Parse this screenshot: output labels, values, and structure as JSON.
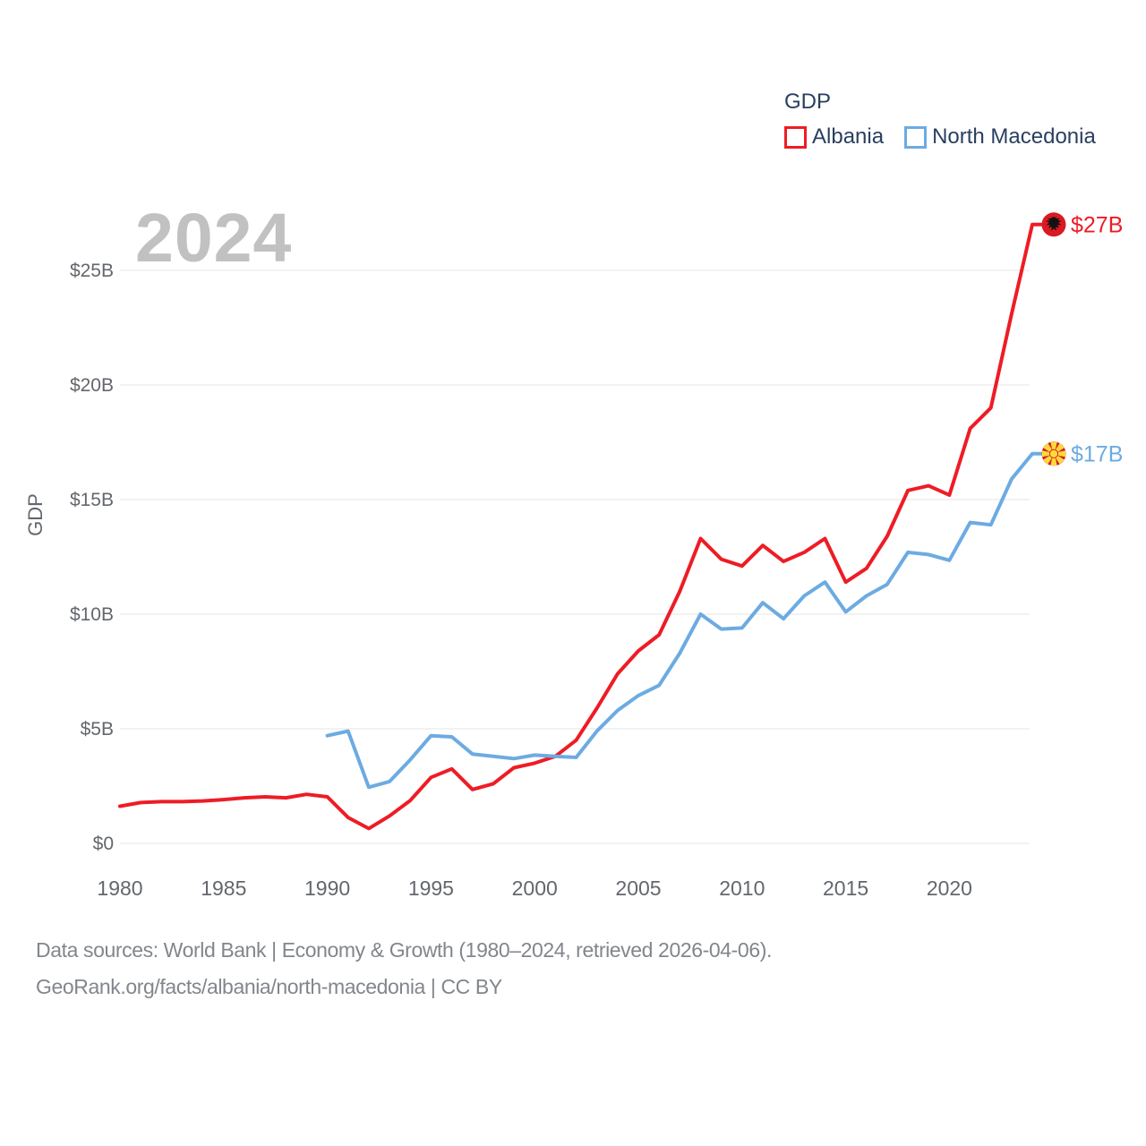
{
  "watermark": "2024",
  "legend": {
    "title": "GDP",
    "items": [
      {
        "label": "Albania",
        "color": "#ee1c25"
      },
      {
        "label": "North Macedonia",
        "color": "#6cabe2"
      }
    ]
  },
  "end_labels": {
    "albania": "$27B",
    "north_macedonia": "$17B"
  },
  "footer": {
    "line1": "Data sources: World Bank | Economy & Growth (1980–2024, retrieved 2026-04-06).",
    "line2": "GeoRank.org/facts/albania/north-macedonia | CC BY"
  },
  "chart_data": {
    "type": "line",
    "title": "GDP",
    "ylabel": "GDP",
    "xlabel": "",
    "x_start": 1980,
    "x_end": 2024,
    "ylim": [
      0,
      27.5
    ],
    "grid": "horizontal-only",
    "legend_position": "top-right",
    "grid_color": "#e9e9ec",
    "tick_color": "#63676c",
    "yticks": [
      {
        "v": 0,
        "label": "$0"
      },
      {
        "v": 5,
        "label": "$5B"
      },
      {
        "v": 10,
        "label": "$10B"
      },
      {
        "v": 15,
        "label": "$15B"
      },
      {
        "v": 20,
        "label": "$20B"
      },
      {
        "v": 25,
        "label": "$25B"
      }
    ],
    "xticks": [
      {
        "v": 1980,
        "label": "1980"
      },
      {
        "v": 1985,
        "label": "1985"
      },
      {
        "v": 1990,
        "label": "1990"
      },
      {
        "v": 1995,
        "label": "1995"
      },
      {
        "v": 2000,
        "label": "2000"
      },
      {
        "v": 2005,
        "label": "2005"
      },
      {
        "v": 2010,
        "label": "2010"
      },
      {
        "v": 2015,
        "label": "2015"
      },
      {
        "v": 2020,
        "label": "2020"
      }
    ],
    "series": [
      {
        "name": "Albania",
        "slug": "albania",
        "color": "#ee1c25",
        "unit": "billion USD",
        "start_year": 1980,
        "end_value_label": "$27B",
        "values": [
          1.62,
          1.78,
          1.82,
          1.82,
          1.85,
          1.91,
          1.99,
          2.03,
          1.99,
          2.14,
          2.03,
          1.13,
          0.65,
          1.2,
          1.87,
          2.88,
          3.25,
          2.35,
          2.6,
          3.3,
          3.5,
          3.8,
          4.5,
          5.9,
          7.4,
          8.4,
          9.1,
          11.0,
          13.3,
          12.4,
          12.1,
          13.0,
          12.3,
          12.7,
          13.3,
          11.4,
          12.0,
          13.4,
          15.4,
          15.6,
          15.2,
          18.1,
          19.0,
          23.1,
          27.0
        ]
      },
      {
        "name": "North Macedonia",
        "slug": "north_macedonia",
        "color": "#6cabe2",
        "unit": "billion USD",
        "start_year": 1990,
        "end_value_label": "$17B",
        "values": [
          4.7,
          4.9,
          2.45,
          2.7,
          3.65,
          4.7,
          4.65,
          3.9,
          3.8,
          3.7,
          3.85,
          3.8,
          3.75,
          4.9,
          5.8,
          6.45,
          6.9,
          8.3,
          10.0,
          9.35,
          9.4,
          10.5,
          9.8,
          10.8,
          11.4,
          10.1,
          10.8,
          11.3,
          12.7,
          12.6,
          12.35,
          14.0,
          13.9,
          15.9,
          17.0
        ]
      }
    ]
  }
}
